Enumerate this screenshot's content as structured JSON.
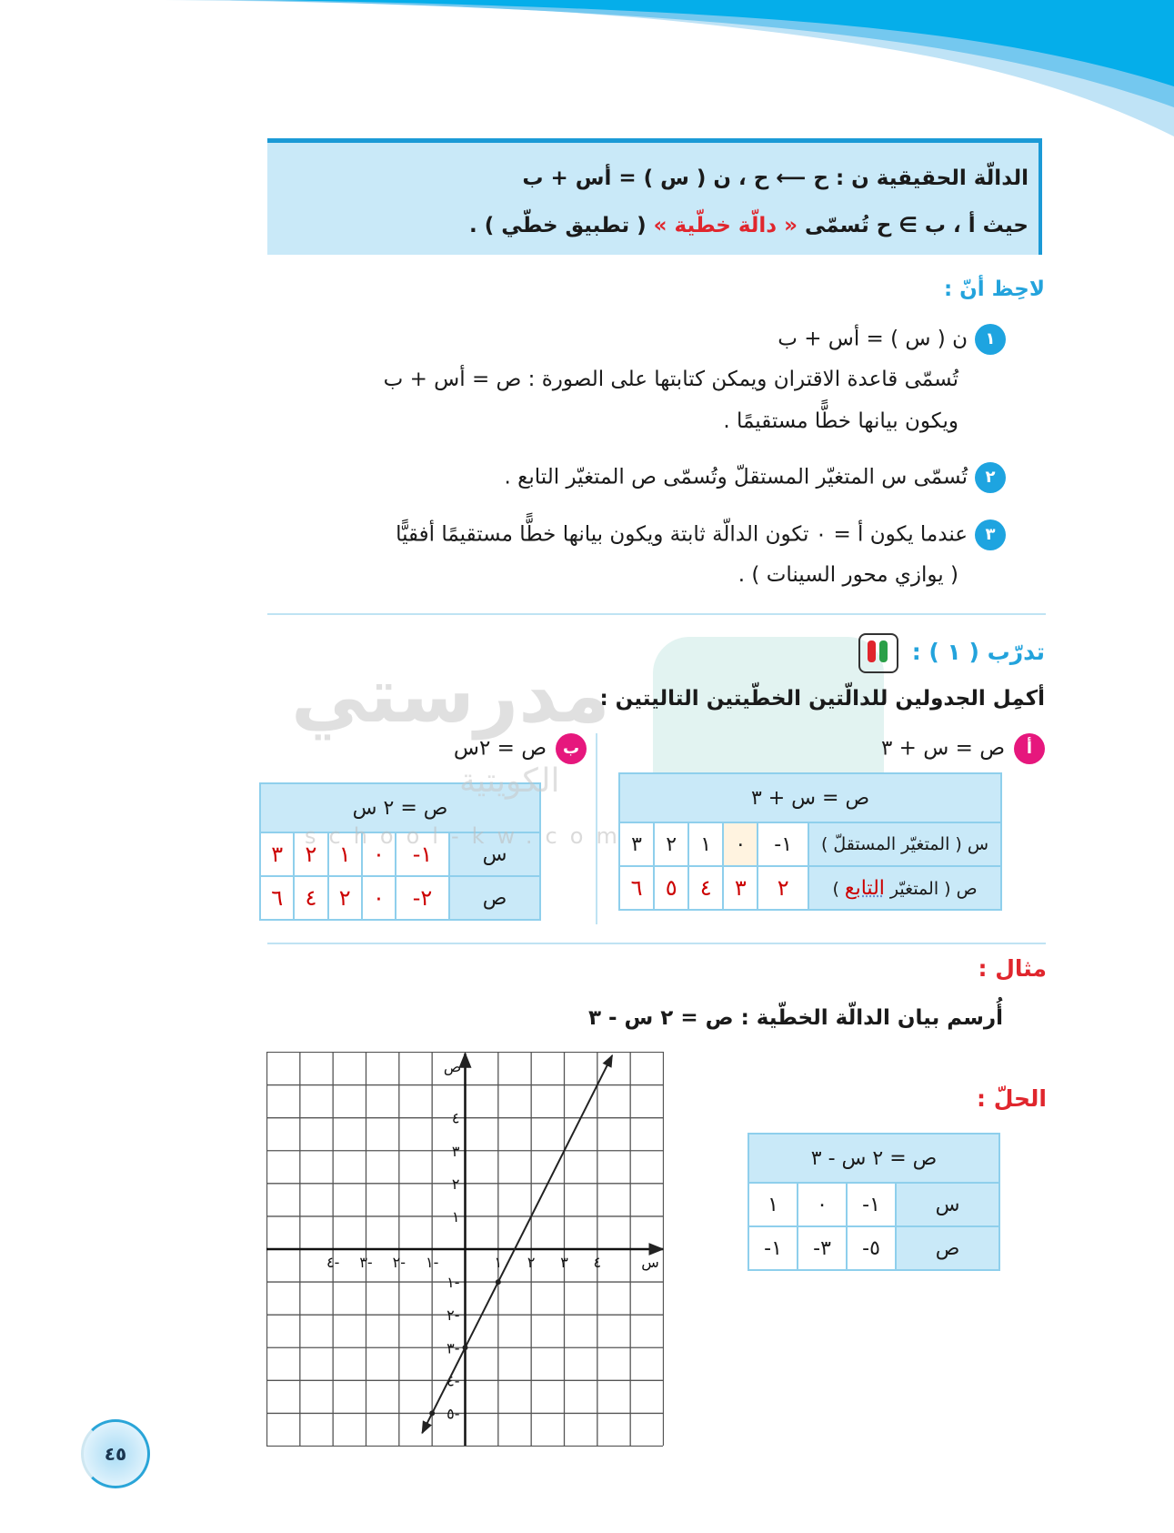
{
  "definition": {
    "line1": "الدالّة الحقيقية  ن : ح ⟵ ح ، ن ( س ) = أس + ب",
    "line2_prefix": "حيث أ ، ب ∋ ح تُسمّى ",
    "line2_highlight": "« دالّة خطّية »",
    "line2_suffix": " ( تطبيق خطّي ) ."
  },
  "notes": {
    "title": "لاحِظ أنّ :",
    "items": [
      {
        "number": "١",
        "lines": [
          "ن ( س ) = أس + ب",
          "تُسمّى قاعدة الاقتران ويمكن كتابتها على الصورة :  ص = أس + ب",
          "ويكون بيانها خطًّا مستقيمًا ."
        ]
      },
      {
        "number": "٢",
        "lines": [
          "تُسمّى س المتغيّر المستقلّ وتُسمّى ص المتغيّر التابع ."
        ]
      },
      {
        "number": "٣",
        "lines": [
          "عندما يكون أ = ٠ تكون الدالّة ثابتة ويكون بيانها خطًّا مستقيمًا أفقيًّا",
          "( يوازي محور السينات ) ."
        ]
      }
    ]
  },
  "practice": {
    "title": "تدرّب ( ١ ) :",
    "icon": "students-book-icon",
    "instruction": "أكمِل الجدولين للدالّتين الخطّيتين التاليتين :",
    "part_a": {
      "label": "أ",
      "equation": "ص = س + ٣",
      "table": {
        "header": "ص = س + ٣",
        "row_x_label": "س ( المتغيّر المستقلّ )",
        "row_y_label_prefix": "ص ( المتغيّر ",
        "row_y_label_word": "التابع",
        "row_y_label_suffix": " )",
        "x": [
          "١-",
          "٠",
          "١",
          "٢",
          "٣"
        ],
        "y": [
          "٢",
          "٣",
          "٤",
          "٥",
          "٦"
        ]
      }
    },
    "part_b": {
      "label": "ب",
      "equation": "ص = ٢س",
      "table": {
        "header": "ص = ٢ س",
        "row_x_label": "س",
        "row_y_label": "ص",
        "x": [
          "١-",
          "٠",
          "١",
          "٢",
          "٣"
        ],
        "y": [
          "٢-",
          "٠",
          "٢",
          "٤",
          "٦"
        ]
      }
    }
  },
  "example": {
    "title": "مثال :",
    "instruction": "أُرسم بيان الدالّة الخطّية :   ص = ٢ س - ٣",
    "solution_title": "الحلّ :",
    "table": {
      "header": "ص = ٢ س - ٣",
      "row_x_label": "س",
      "row_y_label": "ص",
      "x": [
        "١-",
        "٠",
        "١"
      ],
      "y": [
        "٥-",
        "٣-",
        "١-"
      ]
    },
    "graph": {
      "type": "line",
      "equation": "y = 2x - 3",
      "slope": 2,
      "intercept": -3,
      "x_range": [
        -6,
        6
      ],
      "y_range": [
        -6,
        6
      ],
      "grid": true,
      "x_axis_label": "س",
      "y_axis_label": "ص",
      "x_ticks": [
        {
          "v": -4,
          "t": "٤-"
        },
        {
          "v": -3,
          "t": "٣-"
        },
        {
          "v": -2,
          "t": "٢-"
        },
        {
          "v": -1,
          "t": "١-"
        },
        {
          "v": 1,
          "t": "١"
        },
        {
          "v": 2,
          "t": "٢"
        },
        {
          "v": 3,
          "t": "٣"
        },
        {
          "v": 4,
          "t": "٤"
        }
      ],
      "y_ticks": [
        {
          "v": 4,
          "t": "٤"
        },
        {
          "v": 3,
          "t": "٣"
        },
        {
          "v": 2,
          "t": "٢"
        },
        {
          "v": 1,
          "t": "١"
        },
        {
          "v": -1,
          "t": "١-"
        },
        {
          "v": -2,
          "t": "٢-"
        },
        {
          "v": -3,
          "t": "٣-"
        },
        {
          "v": -4,
          "t": "٤-"
        },
        {
          "v": -5,
          "t": "٥-"
        }
      ],
      "points": [
        [
          -1,
          -5
        ],
        [
          0,
          -3
        ],
        [
          1,
          -1
        ]
      ]
    }
  },
  "watermark": {
    "name": "مدرستي",
    "sub": "الكويتية",
    "site": "school-kw.com"
  },
  "page_number": "٤٥",
  "colors": {
    "accent_blue": "#1ea4e0",
    "box_fill": "#c9e9f8",
    "heading_red": "#e0262d",
    "label_pink": "#e6177d",
    "answer_red": "#cc0000"
  }
}
